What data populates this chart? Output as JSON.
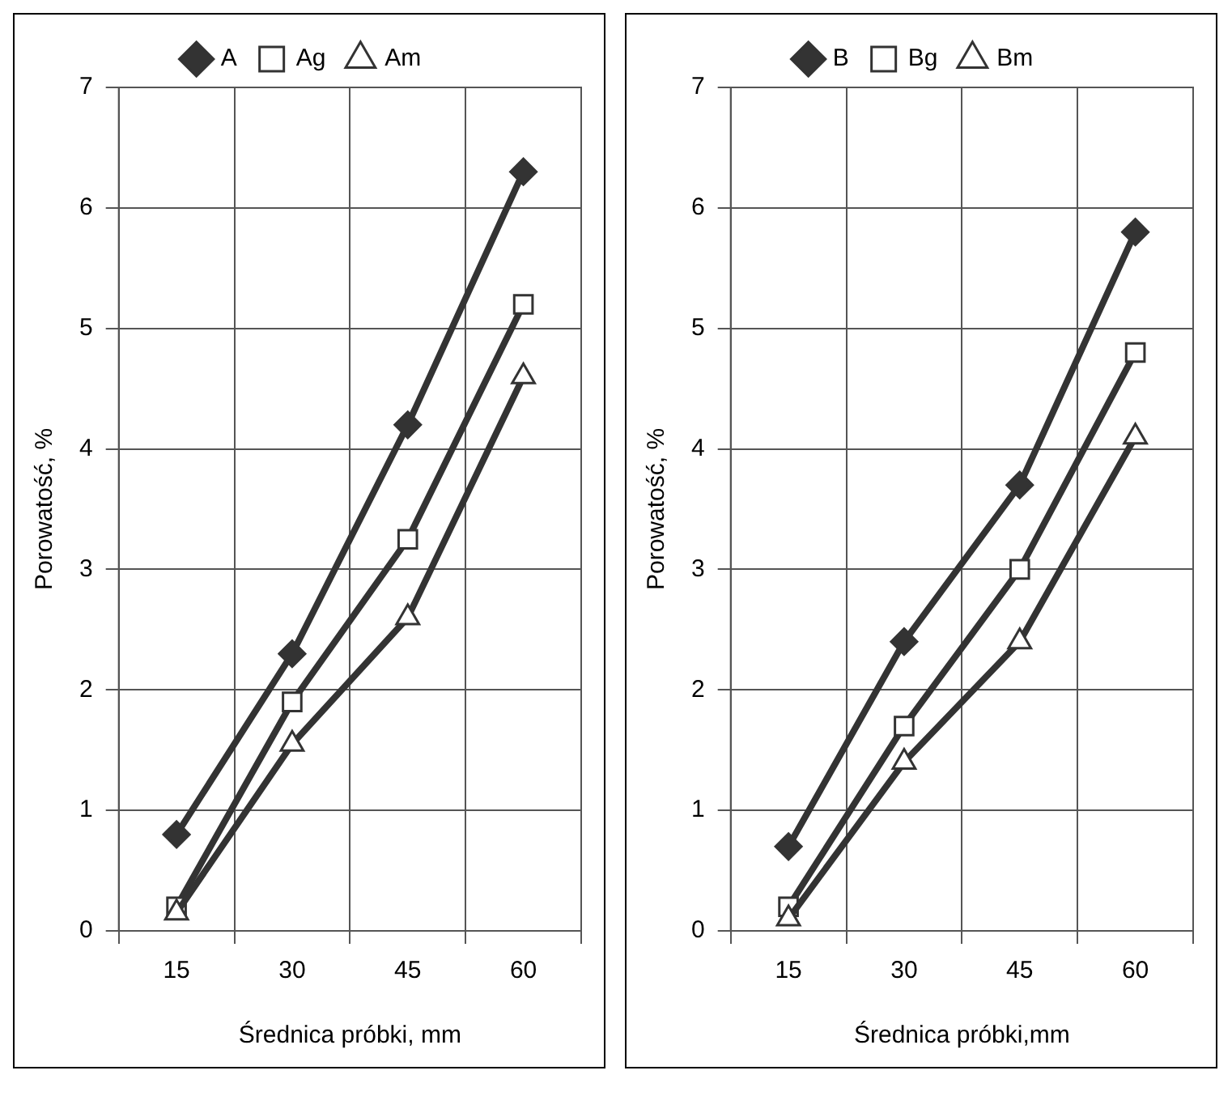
{
  "chart_data": [
    {
      "type": "line",
      "categories": [
        "15",
        "30",
        "45",
        "60"
      ],
      "xlabel": "Średnica próbki, mm",
      "ylabel": "Porowatość, %",
      "ylim": [
        0,
        7
      ],
      "yticks": [
        0,
        1,
        2,
        3,
        4,
        5,
        6,
        7
      ],
      "grid": true,
      "legend": "top",
      "series": [
        {
          "name": "A",
          "color": "#333333",
          "marker": "diamond",
          "values": [
            0.8,
            2.3,
            4.2,
            6.3
          ]
        },
        {
          "name": "Ag",
          "color": "#333333",
          "marker": "square",
          "values": [
            0.2,
            1.9,
            3.25,
            5.2
          ]
        },
        {
          "name": "Am",
          "color": "#333333",
          "marker": "triangle",
          "values": [
            0.15,
            1.55,
            2.6,
            4.6
          ]
        }
      ]
    },
    {
      "type": "line",
      "categories": [
        "15",
        "30",
        "45",
        "60"
      ],
      "xlabel": "Średnica próbki,mm",
      "ylabel": "Porowatość, %",
      "ylim": [
        0,
        7
      ],
      "yticks": [
        0,
        1,
        2,
        3,
        4,
        5,
        6,
        7
      ],
      "grid": true,
      "legend": "top",
      "series": [
        {
          "name": "B",
          "color": "#333333",
          "marker": "diamond",
          "values": [
            0.7,
            2.4,
            3.7,
            5.8
          ]
        },
        {
          "name": "Bg",
          "color": "#333333",
          "marker": "square",
          "values": [
            0.2,
            1.7,
            3.0,
            4.8
          ]
        },
        {
          "name": "Bm",
          "color": "#333333",
          "marker": "triangle",
          "values": [
            0.1,
            1.4,
            2.4,
            4.1
          ]
        }
      ]
    }
  ]
}
